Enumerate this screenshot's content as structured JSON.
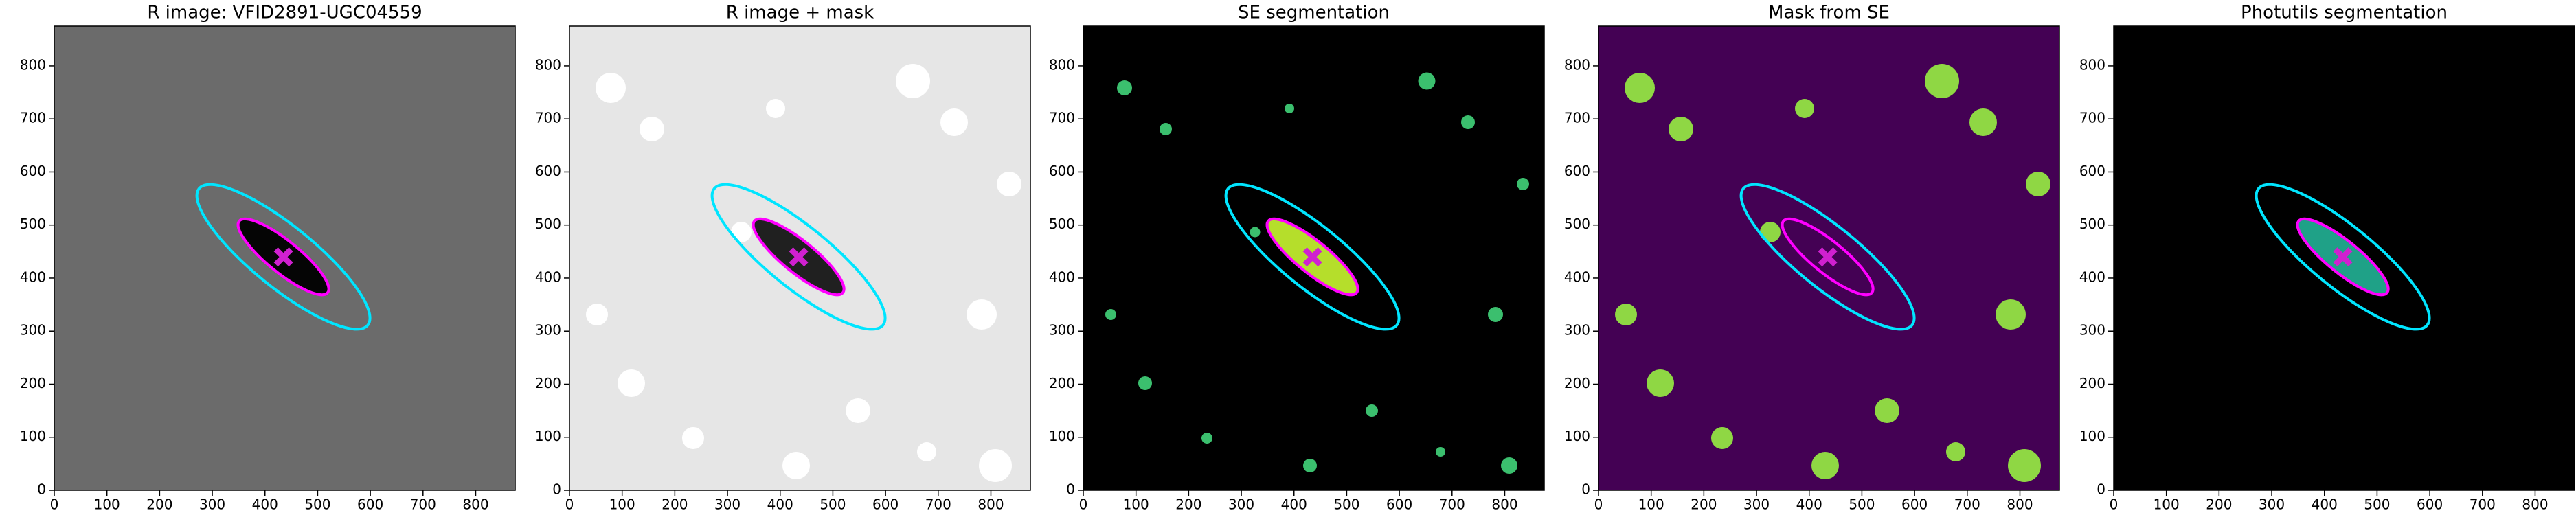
{
  "chart_data": [
    {
      "type": "image",
      "title": "R image: VFID2891-UGC04559",
      "background": "#6b6b6b",
      "galaxy_color": "#050505",
      "xlim": [
        0,
        875
      ],
      "ylim": [
        0,
        875
      ],
      "xticks": [
        0,
        100,
        200,
        300,
        400,
        500,
        600,
        700,
        800
      ],
      "yticks": [
        0,
        100,
        200,
        300,
        400,
        500,
        600,
        700,
        800
      ],
      "ellipses": [
        {
          "center": [
            435,
            440
          ],
          "semi_major": 206,
          "semi_minor": 58,
          "angle": -39,
          "color": "#00e5ff"
        },
        {
          "center": [
            435,
            440
          ],
          "semi_major": 108,
          "semi_minor": 30,
          "angle": -39,
          "color": "#ff00ff"
        }
      ],
      "marker": {
        "x": 435,
        "y": 440,
        "color": "#d020d0"
      }
    },
    {
      "type": "image",
      "title": "R image + mask",
      "background": "#e6e6e6",
      "galaxy_color": "#202020",
      "xlim": [
        0,
        875
      ],
      "ylim": [
        0,
        875
      ],
      "xticks": [
        0,
        100,
        200,
        300,
        400,
        500,
        600,
        700,
        800
      ],
      "yticks": [
        0,
        100,
        200,
        300,
        400,
        500,
        600,
        700,
        800
      ],
      "ellipses": [
        {
          "center": [
            435,
            440
          ],
          "semi_major": 206,
          "semi_minor": 58,
          "angle": -39,
          "color": "#00e5ff"
        },
        {
          "center": [
            435,
            440
          ],
          "semi_major": 108,
          "semi_minor": 30,
          "angle": -39,
          "color": "#ff00ff"
        }
      ],
      "marker": {
        "x": 435,
        "y": 440,
        "color": "#d020d0"
      }
    },
    {
      "type": "image",
      "title": "SE segmentation",
      "background": "#000000",
      "galaxy_color": "#b5de2b",
      "xlim": [
        0,
        875
      ],
      "ylim": [
        0,
        875
      ],
      "xticks": [
        0,
        100,
        200,
        300,
        400,
        500,
        600,
        700,
        800
      ],
      "yticks": [
        0,
        100,
        200,
        300,
        400,
        500,
        600,
        700,
        800
      ],
      "ellipses": [
        {
          "center": [
            435,
            440
          ],
          "semi_major": 206,
          "semi_minor": 58,
          "angle": -39,
          "color": "#00e5ff"
        },
        {
          "center": [
            435,
            440
          ],
          "semi_major": 108,
          "semi_minor": 30,
          "angle": -39,
          "color": "#ff00ff"
        }
      ],
      "marker": {
        "x": 435,
        "y": 440,
        "color": "#d020d0"
      }
    },
    {
      "type": "image",
      "title": "Mask from SE",
      "background": "#440154",
      "xlim": [
        0,
        875
      ],
      "ylim": [
        0,
        875
      ],
      "xticks": [
        0,
        100,
        200,
        300,
        400,
        500,
        600,
        700,
        800
      ],
      "yticks": [
        0,
        100,
        200,
        300,
        400,
        500,
        600,
        700,
        800
      ],
      "ellipses": [
        {
          "center": [
            435,
            440
          ],
          "semi_major": 206,
          "semi_minor": 58,
          "angle": -39,
          "color": "#00e5ff"
        },
        {
          "center": [
            435,
            440
          ],
          "semi_major": 108,
          "semi_minor": 30,
          "angle": -39,
          "color": "#ff00ff"
        }
      ],
      "marker": {
        "x": 435,
        "y": 440,
        "color": "#d020d0"
      }
    },
    {
      "type": "image",
      "title": "Photutils segmentation",
      "background": "#000000",
      "galaxy_color": "#1fa187",
      "xlim": [
        0,
        875
      ],
      "ylim": [
        0,
        875
      ],
      "xticks": [
        0,
        100,
        200,
        300,
        400,
        500,
        600,
        700,
        800
      ],
      "yticks": [
        0,
        100,
        200,
        300,
        400,
        500,
        600,
        700,
        800
      ],
      "ellipses": [
        {
          "center": [
            435,
            440
          ],
          "semi_major": 206,
          "semi_minor": 58,
          "angle": -39,
          "color": "#00e5ff"
        },
        {
          "center": [
            435,
            440
          ],
          "semi_major": 108,
          "semi_minor": 30,
          "angle": -39,
          "color": "#ff00ff"
        }
      ],
      "marker": {
        "x": 435,
        "y": 440,
        "color": "#d020d0"
      }
    }
  ]
}
